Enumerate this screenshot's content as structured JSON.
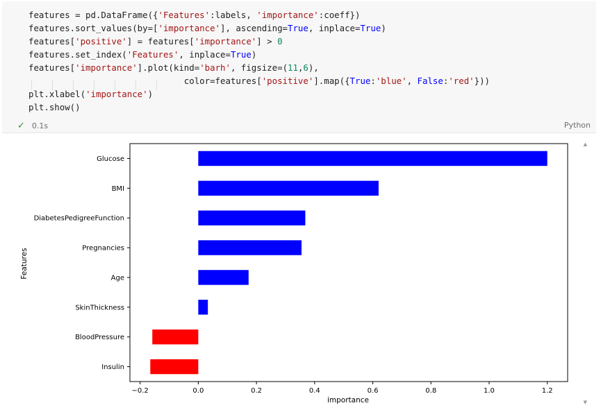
{
  "code": {
    "lines": [
      [
        {
          "t": "features = pd.DataFrame({"
        },
        {
          "t": "'Features'",
          "c": "s"
        },
        {
          "t": ":labels, "
        },
        {
          "t": "'importance'",
          "c": "s"
        },
        {
          "t": ":coeff})"
        }
      ],
      [
        {
          "t": "features.sort_values(by=["
        },
        {
          "t": "'importance'",
          "c": "s"
        },
        {
          "t": "], ascending="
        },
        {
          "t": "True",
          "c": "k"
        },
        {
          "t": ", inplace="
        },
        {
          "t": "True",
          "c": "k"
        },
        {
          "t": ")"
        }
      ],
      [
        {
          "t": "features["
        },
        {
          "t": "'positive'",
          "c": "s"
        },
        {
          "t": "] = features["
        },
        {
          "t": "'importance'",
          "c": "s"
        },
        {
          "t": "] > "
        },
        {
          "t": "0",
          "c": "n"
        }
      ],
      [
        {
          "t": "features.set_index("
        },
        {
          "t": "'Features'",
          "c": "s"
        },
        {
          "t": ", inplace="
        },
        {
          "t": "True",
          "c": "k"
        },
        {
          "t": ")"
        }
      ],
      [
        {
          "t": "features["
        },
        {
          "t": "'importance'",
          "c": "s"
        },
        {
          "t": "].plot(kind="
        },
        {
          "t": "'barh'",
          "c": "s"
        },
        {
          "t": ", figsize=("
        },
        {
          "t": "11",
          "c": "n"
        },
        {
          "t": ","
        },
        {
          "t": "6",
          "c": "n"
        },
        {
          "t": "),"
        }
      ],
      [
        {
          "t": "                              color=features["
        },
        {
          "t": "'positive'",
          "c": "s"
        },
        {
          "t": "].map({"
        },
        {
          "t": "True",
          "c": "k"
        },
        {
          "t": ":"
        },
        {
          "t": "'blue'",
          "c": "s"
        },
        {
          "t": ", "
        },
        {
          "t": "False",
          "c": "k"
        },
        {
          "t": ":"
        },
        {
          "t": "'red'",
          "c": "s"
        },
        {
          "t": "}))"
        }
      ],
      [
        {
          "t": "plt.xlabel("
        },
        {
          "t": "'importance'",
          "c": "s"
        },
        {
          "t": ")"
        }
      ],
      [
        {
          "t": "plt.show()"
        }
      ]
    ]
  },
  "status": {
    "check_icon": "check-icon",
    "exec_time": "0.1s",
    "language": "Python"
  },
  "chart_data": {
    "type": "bar",
    "orientation": "horizontal",
    "categories": [
      "Glucose",
      "BMI",
      "DiabetesPedigreeFunction",
      "Pregnancies",
      "Age",
      "SkinThickness",
      "BloodPressure",
      "Insulin"
    ],
    "values": [
      1.2,
      0.62,
      0.368,
      0.355,
      0.173,
      0.033,
      -0.158,
      -0.165
    ],
    "colors": [
      "#0000ff",
      "#0000ff",
      "#0000ff",
      "#0000ff",
      "#0000ff",
      "#0000ff",
      "#ff0000",
      "#ff0000"
    ],
    "xlabel": "importance",
    "ylabel": "Features",
    "xlim": [
      -0.235,
      1.27
    ],
    "xticks": [
      -0.2,
      0.0,
      0.2,
      0.4,
      0.6,
      0.8,
      1.0,
      1.2
    ],
    "xtick_labels": [
      "−0.2",
      "0.0",
      "0.2",
      "0.4",
      "0.6",
      "0.8",
      "1.0",
      "1.2"
    ],
    "grid": false,
    "legend": "none"
  }
}
